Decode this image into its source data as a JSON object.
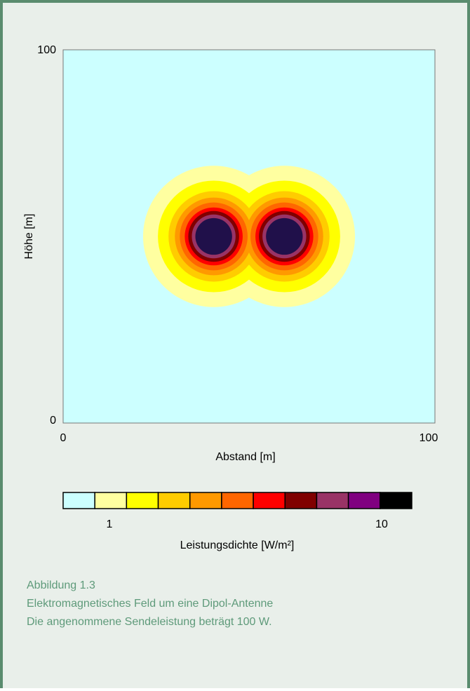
{
  "chart_data": {
    "type": "heatmap",
    "title": "",
    "xlabel": "Abstand [m]",
    "ylabel": "Höhe [m]",
    "xlim": [
      0,
      100
    ],
    "ylim": [
      0,
      100
    ],
    "x_ticks": [
      "0",
      "100"
    ],
    "y_ticks": [
      "0",
      "100"
    ],
    "colorbar": {
      "label": "Leistungsdichte [W/m²]",
      "tick_labels": [
        "1",
        "10"
      ],
      "colors": [
        "#ccffff",
        "#ffffa0",
        "#ffff00",
        "#ffcc00",
        "#ff9900",
        "#ff6600",
        "#ff0000",
        "#800000",
        "#993366",
        "#800080",
        "#000000"
      ]
    },
    "field": {
      "description_of_values": "power density lobes of a dipole antenna",
      "dipole_center": [
        50,
        50
      ],
      "lobes": [
        {
          "center": [
            40.5,
            50
          ],
          "radius": 19
        },
        {
          "center": [
            59.5,
            50
          ],
          "radius": 19
        }
      ],
      "core_color": "#20104a",
      "background_color": "#ccffff"
    }
  },
  "caption": {
    "figure_number": "Abbildung 1.3",
    "title": "Elektromagnetisches Feld um eine Dipol-Antenne",
    "note": "Die angenommene Sendeleistung beträgt 100 W."
  }
}
